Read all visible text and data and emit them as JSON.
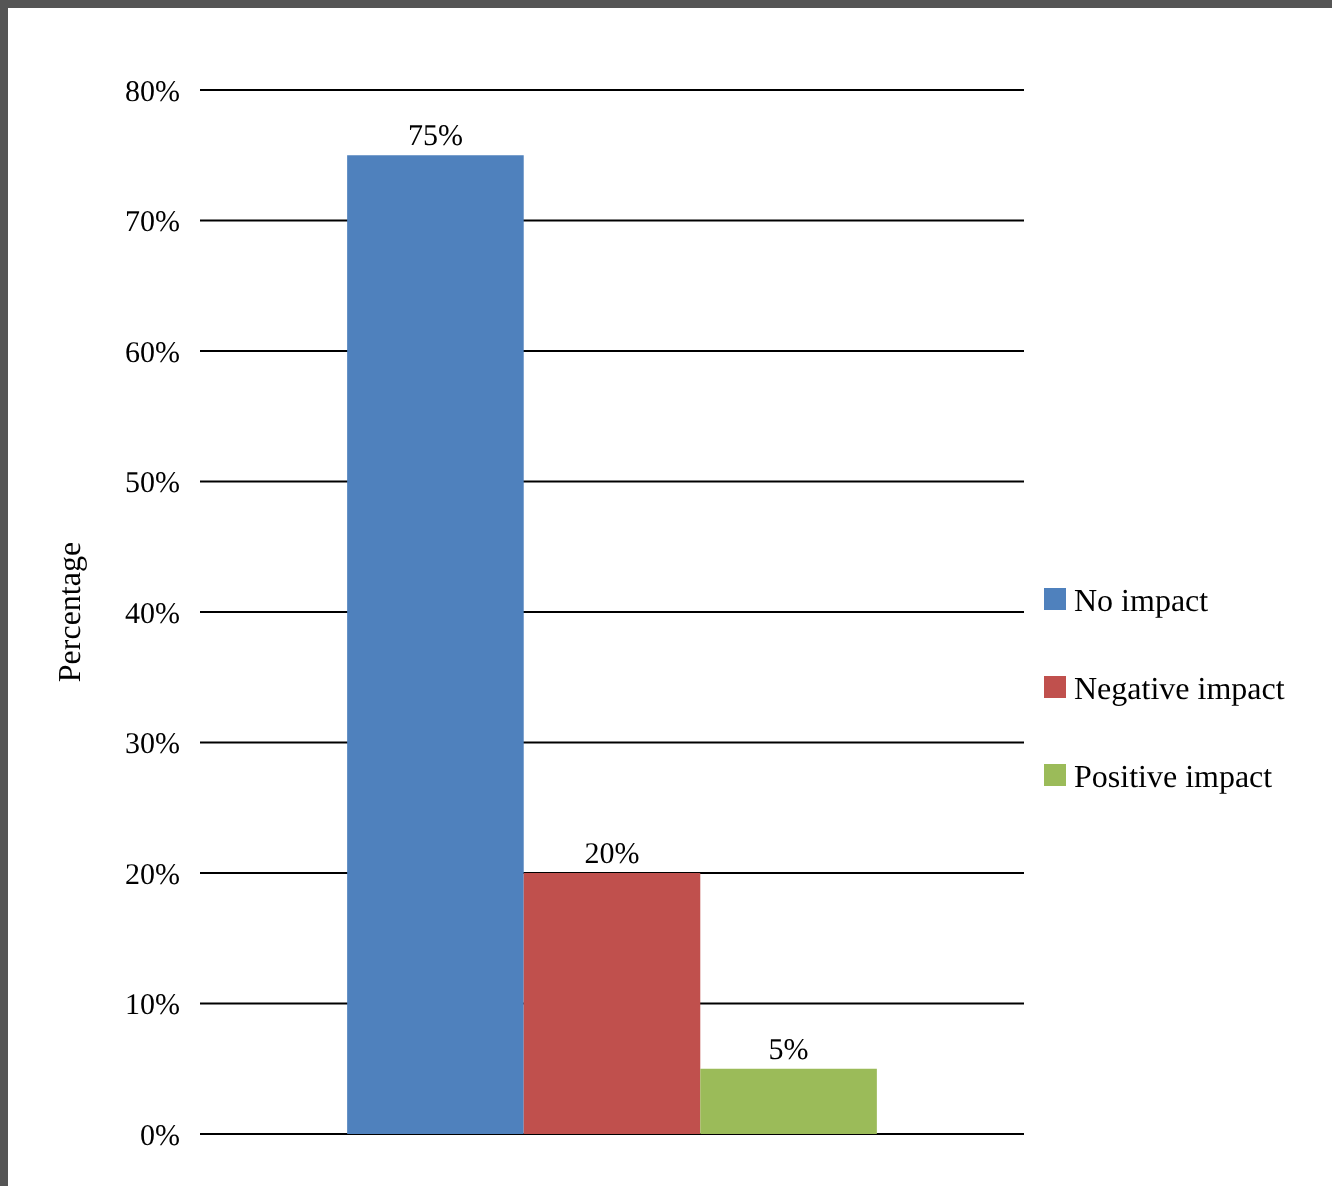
{
  "chart_data": {
    "type": "bar",
    "ylabel": "Percentage",
    "categories": [
      null
    ],
    "series": [
      {
        "name": "No impact",
        "color": "#4f81bd",
        "values": [
          75
        ],
        "value_labels": [
          "75%"
        ]
      },
      {
        "name": "Negative impact",
        "color": "#c0504d",
        "values": [
          20
        ],
        "value_labels": [
          "20%"
        ]
      },
      {
        "name": "Positive impact",
        "color": "#9bbb59",
        "values": [
          5
        ],
        "value_labels": [
          "5%"
        ]
      }
    ],
    "ylim": [
      0,
      80
    ],
    "yticks": [
      {
        "value": 0,
        "label": "0%"
      },
      {
        "value": 10,
        "label": "10%"
      },
      {
        "value": 20,
        "label": "20%"
      },
      {
        "value": 30,
        "label": "30%"
      },
      {
        "value": 40,
        "label": "40%"
      },
      {
        "value": 50,
        "label": "50%"
      },
      {
        "value": 60,
        "label": "60%"
      },
      {
        "value": 70,
        "label": "70%"
      },
      {
        "value": 80,
        "label": "80%"
      }
    ],
    "grid": "y",
    "legend": "right"
  }
}
